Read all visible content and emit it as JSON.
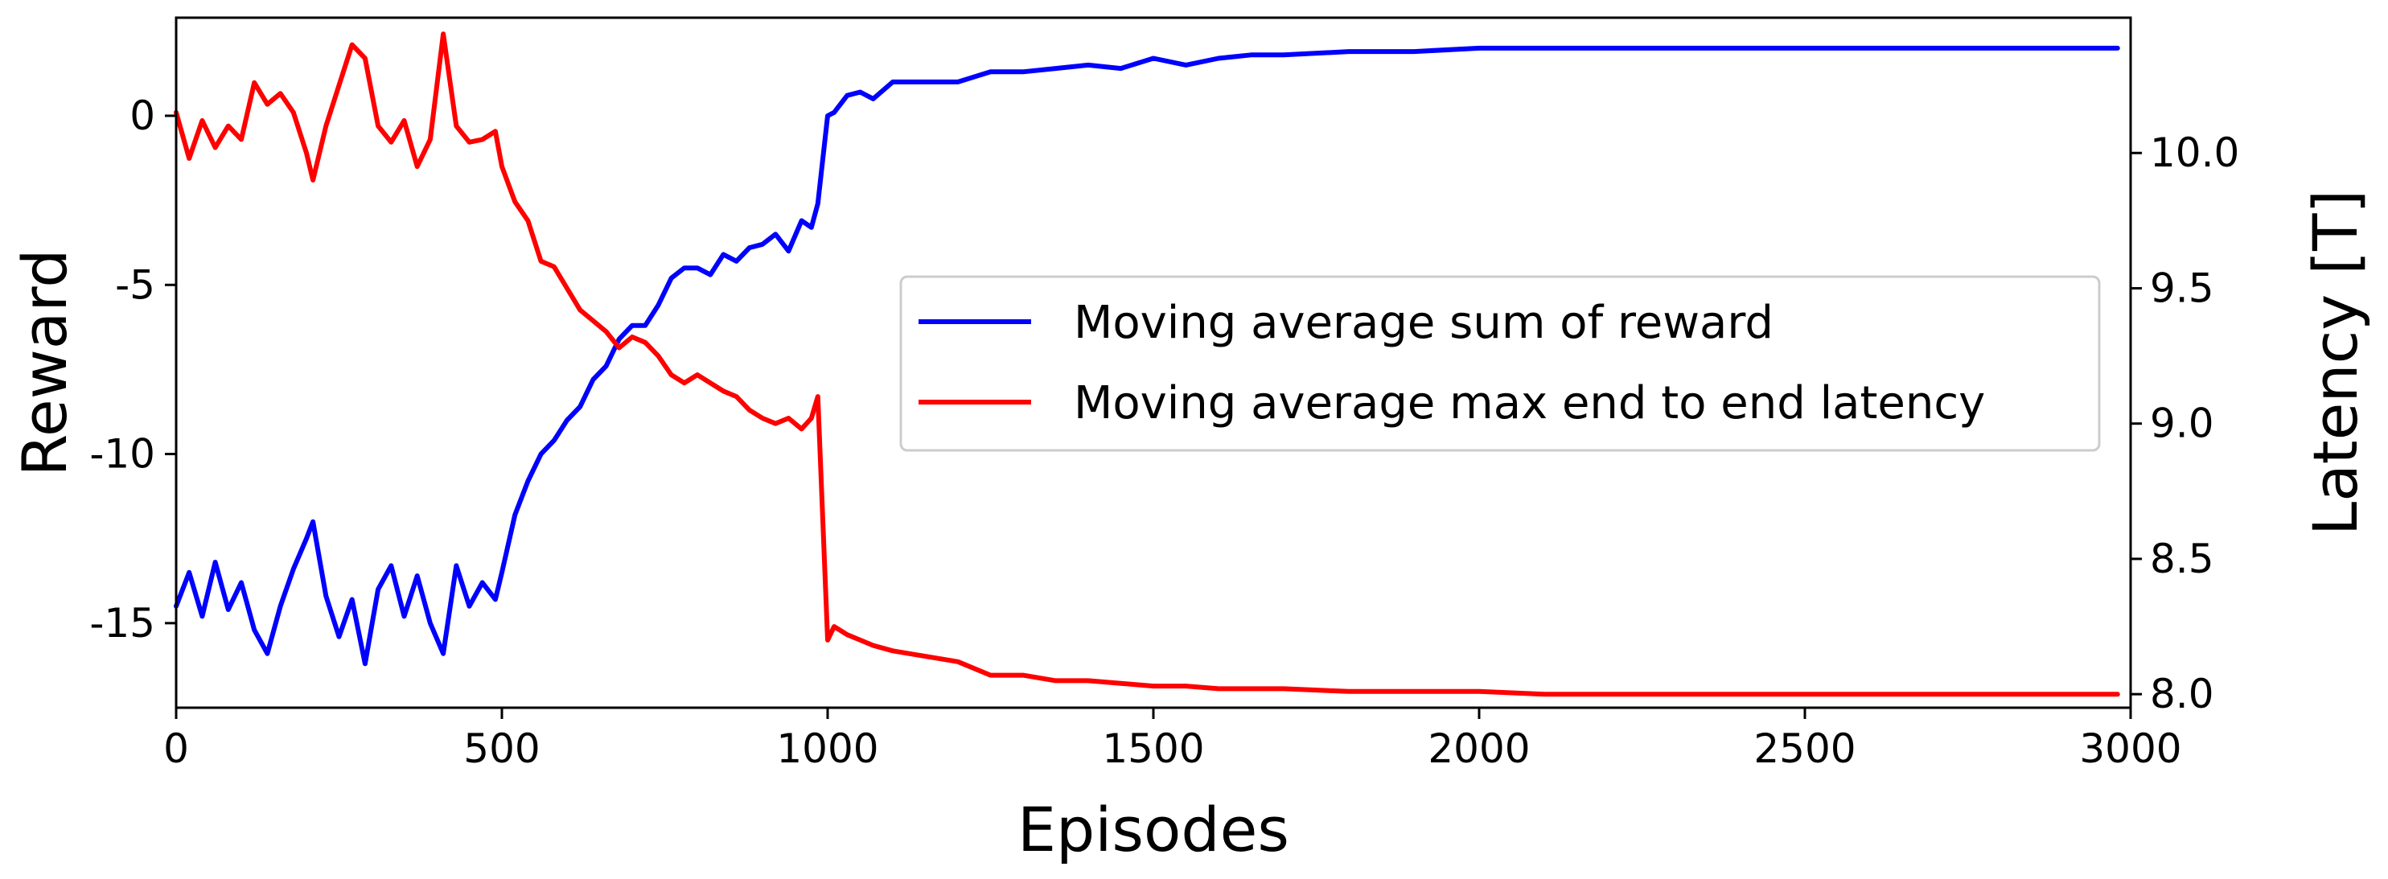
{
  "chart_data": {
    "type": "line",
    "title": "",
    "xlabel": "Episodes",
    "ylabel_left": "Reward",
    "ylabel_right": "Latency [T]",
    "xlim": [
      0,
      3000
    ],
    "ylim_left": [
      -17.5,
      2.9
    ],
    "ylim_right": [
      7.95,
      10.5
    ],
    "x_ticks": [
      0,
      500,
      1000,
      1500,
      2000,
      2500,
      3000
    ],
    "y_left_ticks": [
      0,
      -5,
      -10,
      -15
    ],
    "y_right_ticks": [
      10.0,
      9.5,
      9.0,
      8.5,
      8.0
    ],
    "y_right_tick_labels": [
      "10.0",
      "9.5",
      "9.0",
      "8.5",
      "8.0"
    ],
    "legend_position": "center-right",
    "grid": false,
    "series": [
      {
        "name": "Moving average sum of reward",
        "axis": "left",
        "color": "#0000ff",
        "x": [
          0,
          20,
          40,
          60,
          80,
          100,
          120,
          140,
          160,
          180,
          200,
          210,
          230,
          250,
          270,
          290,
          310,
          330,
          350,
          370,
          390,
          410,
          430,
          450,
          470,
          490,
          500,
          520,
          540,
          560,
          580,
          600,
          620,
          640,
          660,
          680,
          700,
          720,
          740,
          760,
          780,
          800,
          820,
          840,
          860,
          880,
          900,
          920,
          940,
          960,
          975,
          985,
          1000,
          1010,
          1030,
          1050,
          1070,
          1100,
          1150,
          1200,
          1250,
          1300,
          1350,
          1400,
          1450,
          1500,
          1550,
          1600,
          1650,
          1700,
          1800,
          1900,
          2000,
          2100,
          2200,
          2300,
          2400,
          2500,
          2600,
          2700,
          2800,
          2900,
          2980
        ],
        "y": [
          -14.5,
          -13.5,
          -14.8,
          -13.2,
          -14.6,
          -13.8,
          -15.2,
          -15.9,
          -14.5,
          -13.4,
          -12.5,
          -12.0,
          -14.2,
          -15.4,
          -14.3,
          -16.2,
          -14.0,
          -13.3,
          -14.8,
          -13.6,
          -15.0,
          -15.9,
          -13.3,
          -14.5,
          -13.8,
          -14.3,
          -13.5,
          -11.8,
          -10.8,
          -10.0,
          -9.6,
          -9.0,
          -8.6,
          -7.8,
          -7.4,
          -6.6,
          -6.2,
          -6.2,
          -5.6,
          -4.8,
          -4.5,
          -4.5,
          -4.7,
          -4.1,
          -4.3,
          -3.9,
          -3.8,
          -3.5,
          -4.0,
          -3.1,
          -3.3,
          -2.6,
          0.0,
          0.1,
          0.6,
          0.7,
          0.5,
          1.0,
          1.0,
          1.0,
          1.3,
          1.3,
          1.4,
          1.5,
          1.4,
          1.7,
          1.5,
          1.7,
          1.8,
          1.8,
          1.9,
          1.9,
          2.0,
          2.0,
          2.0,
          2.0,
          2.0,
          2.0,
          2.0,
          2.0,
          2.0,
          2.0,
          2.0
        ]
      },
      {
        "name": "Moving average max end to end latency",
        "axis": "right",
        "color": "#ff0000",
        "x": [
          0,
          20,
          40,
          60,
          80,
          100,
          120,
          140,
          160,
          180,
          200,
          210,
          230,
          250,
          270,
          290,
          310,
          330,
          350,
          370,
          390,
          410,
          430,
          450,
          470,
          490,
          500,
          520,
          540,
          560,
          580,
          600,
          620,
          640,
          660,
          680,
          700,
          720,
          740,
          760,
          780,
          800,
          820,
          840,
          860,
          880,
          900,
          920,
          940,
          960,
          975,
          985,
          1000,
          1010,
          1030,
          1050,
          1070,
          1100,
          1150,
          1200,
          1250,
          1300,
          1350,
          1400,
          1450,
          1500,
          1550,
          1600,
          1650,
          1700,
          1800,
          1900,
          2000,
          2100,
          2200,
          2300,
          2400,
          2500,
          2600,
          2700,
          2800,
          2900,
          2980
        ],
        "y": [
          10.15,
          9.98,
          10.12,
          10.02,
          10.1,
          10.05,
          10.26,
          10.18,
          10.22,
          10.15,
          10.0,
          9.9,
          10.1,
          10.25,
          10.4,
          10.35,
          10.1,
          10.04,
          10.12,
          9.95,
          10.05,
          10.44,
          10.1,
          10.04,
          10.05,
          10.08,
          9.95,
          9.82,
          9.75,
          9.6,
          9.58,
          9.5,
          9.42,
          9.38,
          9.34,
          9.28,
          9.32,
          9.3,
          9.25,
          9.18,
          9.15,
          9.18,
          9.15,
          9.12,
          9.1,
          9.05,
          9.02,
          9.0,
          9.02,
          8.98,
          9.02,
          9.1,
          8.2,
          8.25,
          8.22,
          8.2,
          8.18,
          8.16,
          8.14,
          8.12,
          8.07,
          8.07,
          8.05,
          8.05,
          8.04,
          8.03,
          8.03,
          8.02,
          8.02,
          8.02,
          8.01,
          8.01,
          8.01,
          8.0,
          8.0,
          8.0,
          8.0,
          8.0,
          8.0,
          8.0,
          8.0,
          8.0,
          8.0
        ]
      }
    ]
  }
}
